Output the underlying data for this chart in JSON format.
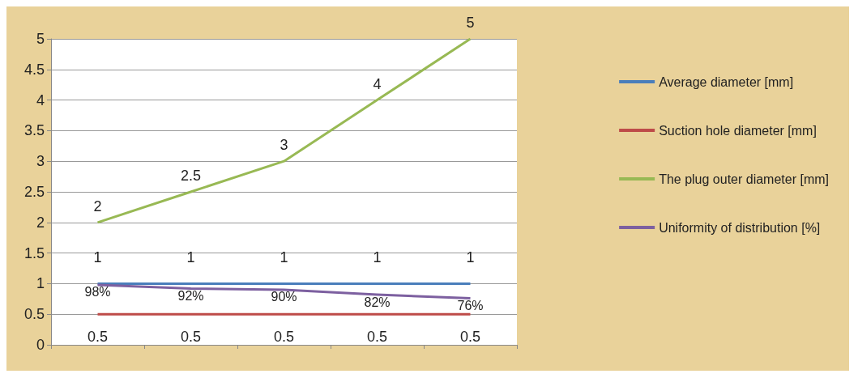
{
  "chart_data": {
    "type": "line",
    "categories": [
      null,
      null,
      null,
      null,
      null
    ],
    "series": [
      {
        "name": "Average diameter [mm]",
        "color": "#4a7ebb",
        "values": [
          1,
          1,
          1,
          1,
          1
        ],
        "value_labels": [
          "1",
          "1",
          "1",
          "1",
          "1"
        ]
      },
      {
        "name": "Suction hole diameter [mm]",
        "color": "#be4b48",
        "values": [
          0.5,
          0.5,
          0.5,
          0.5,
          0.5
        ],
        "value_labels": [
          "0.5",
          "0.5",
          "0.5",
          "0.5",
          "0.5"
        ]
      },
      {
        "name": "The plug outer diameter [mm]",
        "color": "#98b954",
        "values": [
          2,
          2.5,
          3,
          4,
          5
        ],
        "value_labels": [
          "2",
          "2.5",
          "3",
          "4",
          "5"
        ]
      },
      {
        "name": "Uniformity of distribution [%]",
        "color": "#7d60a0",
        "values": [
          0.98,
          0.92,
          0.9,
          0.82,
          0.76
        ],
        "value_labels": [
          "98%",
          "92%",
          "90%",
          "82%",
          "76%"
        ]
      }
    ],
    "ylim": [
      0,
      5
    ],
    "yticks": [
      0,
      0.5,
      1,
      1.5,
      2,
      2.5,
      3,
      3.5,
      4,
      4.5,
      5
    ],
    "grid": "y",
    "legend": "right",
    "marker": "none",
    "line_style": "solid"
  }
}
